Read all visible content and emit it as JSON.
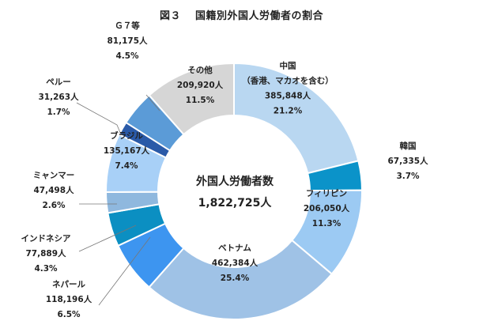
{
  "figure": {
    "number": "図３",
    "title": "国籍別外国人労働者の割合"
  },
  "center": {
    "label": "外国人労働者数",
    "total": "1,822,725人"
  },
  "chart_data": {
    "type": "pie",
    "title": "国籍別外国人労働者の割合",
    "unit": "人",
    "total": 1822725,
    "slices": [
      {
        "label": "中国",
        "sublabel": "（香港、マカオを含む）",
        "count_text": "385,848人",
        "pct_text": "21.2%",
        "value": 385848,
        "percent": 21.2,
        "color": "#b9d7f1"
      },
      {
        "label": "韓国",
        "sublabel": "",
        "count_text": "67,335人",
        "pct_text": "3.7%",
        "value": 67335,
        "percent": 3.7,
        "color": "#0b93c9"
      },
      {
        "label": "フィリピン",
        "sublabel": "",
        "count_text": "206,050人",
        "pct_text": "11.3%",
        "value": 206050,
        "percent": 11.3,
        "color": "#9ccaf3"
      },
      {
        "label": "ベトナム",
        "sublabel": "",
        "count_text": "462,384人",
        "pct_text": "25.4%",
        "value": 462384,
        "percent": 25.4,
        "color": "#9fc2e6"
      },
      {
        "label": "ネパール",
        "sublabel": "",
        "count_text": "118,196人",
        "pct_text": "6.5%",
        "value": 118196,
        "percent": 6.5,
        "color": "#3d95f0"
      },
      {
        "label": "インドネシア",
        "sublabel": "",
        "count_text": "77,889人",
        "pct_text": "4.3%",
        "value": 77889,
        "percent": 4.3,
        "color": "#0b8fc2"
      },
      {
        "label": "ミャンマー",
        "sublabel": "",
        "count_text": "47,498人",
        "pct_text": "2.6%",
        "value": 47498,
        "percent": 2.6,
        "color": "#8fb8de"
      },
      {
        "label": "ブラジル",
        "sublabel": "",
        "count_text": "135,167人",
        "pct_text": "7.4%",
        "value": 135167,
        "percent": 7.4,
        "color": "#a8d0f7"
      },
      {
        "label": "ペルー",
        "sublabel": "",
        "count_text": "31,263人",
        "pct_text": "1.7%",
        "value": 31263,
        "percent": 1.7,
        "color": "#2a5aa8"
      },
      {
        "label": "Ｇ７等",
        "sublabel": "",
        "count_text": "81,175人",
        "pct_text": "4.5%",
        "value": 81175,
        "percent": 4.5,
        "color": "#5b9bd7"
      },
      {
        "label": "その他",
        "sublabel": "",
        "count_text": "209,920人",
        "pct_text": "11.5%",
        "value": 209920,
        "percent": 11.5,
        "color": "#d6d6d6"
      }
    ]
  }
}
